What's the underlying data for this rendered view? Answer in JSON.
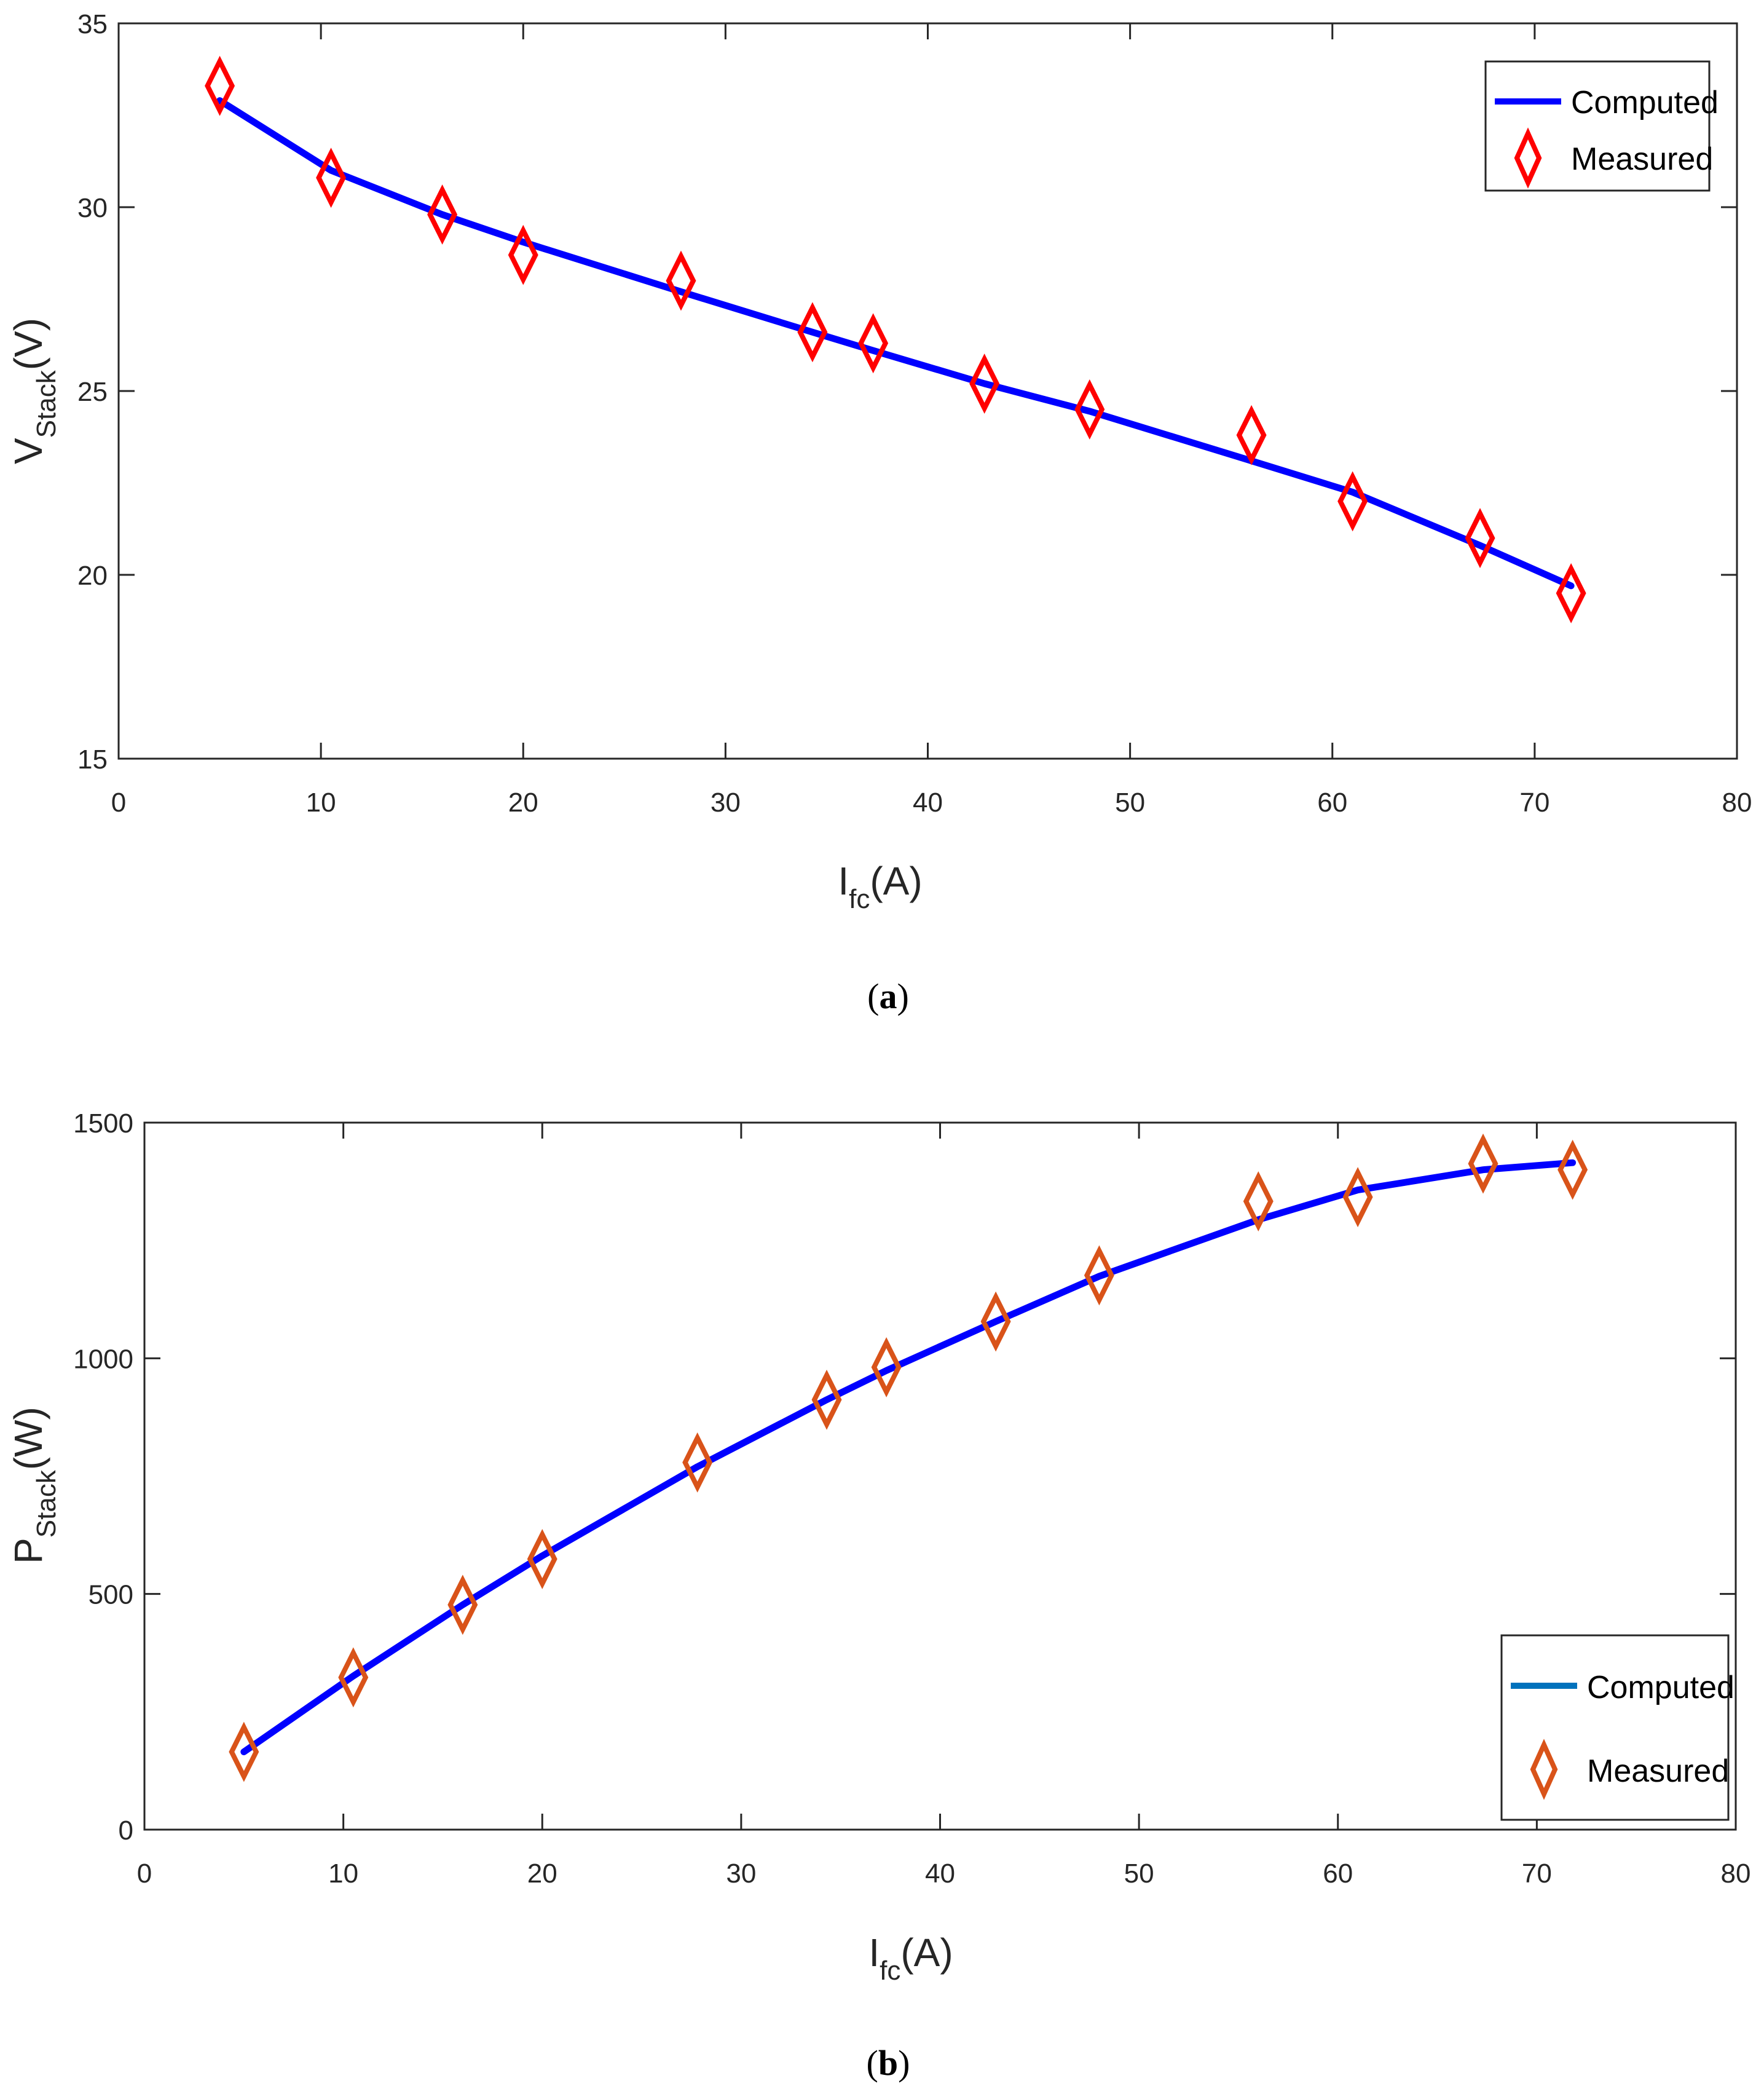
{
  "colors": {
    "computed_line": "#0000FF",
    "legend_line_b": "#0072BD",
    "marker_a": "#FF0000",
    "marker_b": "#D95319",
    "axis": "#262626"
  },
  "chart_data": [
    {
      "type": "line",
      "caption": "a",
      "xlabel": "I",
      "xlabel_sub": "fc",
      "xlabel_unit": "(A)",
      "ylabel": "V",
      "ylabel_sub": "Stack",
      "ylabel_unit": "(V)",
      "xlim": [
        0,
        80
      ],
      "ylim": [
        15,
        35
      ],
      "xticks": [
        0,
        10,
        20,
        30,
        40,
        50,
        60,
        70,
        80
      ],
      "yticks": [
        15,
        20,
        25,
        30,
        35
      ],
      "legend_position": "top-right",
      "series": [
        {
          "name": "Computed",
          "kind": "line",
          "x": [
            5,
            10.5,
            16,
            20,
            27.8,
            34.3,
            37.3,
            42.8,
            48,
            56,
            61,
            67.3,
            71.8
          ],
          "values": [
            32.9,
            31.0,
            29.8,
            29.05,
            27.7,
            26.6,
            26.1,
            25.2,
            24.45,
            23.1,
            22.25,
            20.8,
            19.7
          ]
        },
        {
          "name": "Measured",
          "kind": "scatter",
          "x": [
            5,
            10.5,
            16,
            20,
            27.8,
            34.3,
            37.3,
            42.8,
            48,
            56,
            61,
            67.3,
            71.8
          ],
          "values": [
            33.3,
            30.8,
            29.8,
            28.7,
            28.0,
            26.6,
            26.3,
            25.2,
            24.5,
            23.8,
            22.0,
            21.0,
            19.5
          ]
        }
      ]
    },
    {
      "type": "line",
      "caption": "b",
      "xlabel": "I",
      "xlabel_sub": "fc",
      "xlabel_unit": "(A)",
      "ylabel": "P",
      "ylabel_sub": "Stack",
      "ylabel_unit": "(W)",
      "xlim": [
        0,
        80
      ],
      "ylim": [
        0,
        1500
      ],
      "xticks": [
        0,
        10,
        20,
        30,
        40,
        50,
        60,
        70,
        80
      ],
      "yticks": [
        0,
        500,
        1000,
        1500
      ],
      "legend_position": "bottom-right",
      "series": [
        {
          "name": "Computed",
          "kind": "line",
          "x": [
            5,
            10.5,
            16,
            20,
            27.8,
            34.3,
            37.3,
            42.8,
            48,
            56,
            61,
            67.3,
            71.8
          ],
          "values": [
            165,
            326,
            477,
            581,
            770,
            912,
            974,
            1078,
            1174,
            1294,
            1357,
            1400,
            1415
          ]
        },
        {
          "name": "Measured",
          "kind": "scatter",
          "x": [
            5,
            10.5,
            16,
            20,
            27.8,
            34.3,
            37.3,
            42.8,
            48,
            56,
            61,
            67.3,
            71.8
          ],
          "values": [
            165,
            323,
            477,
            574,
            779,
            912,
            981,
            1078,
            1176,
            1333,
            1342,
            1413,
            1400
          ]
        }
      ]
    }
  ]
}
